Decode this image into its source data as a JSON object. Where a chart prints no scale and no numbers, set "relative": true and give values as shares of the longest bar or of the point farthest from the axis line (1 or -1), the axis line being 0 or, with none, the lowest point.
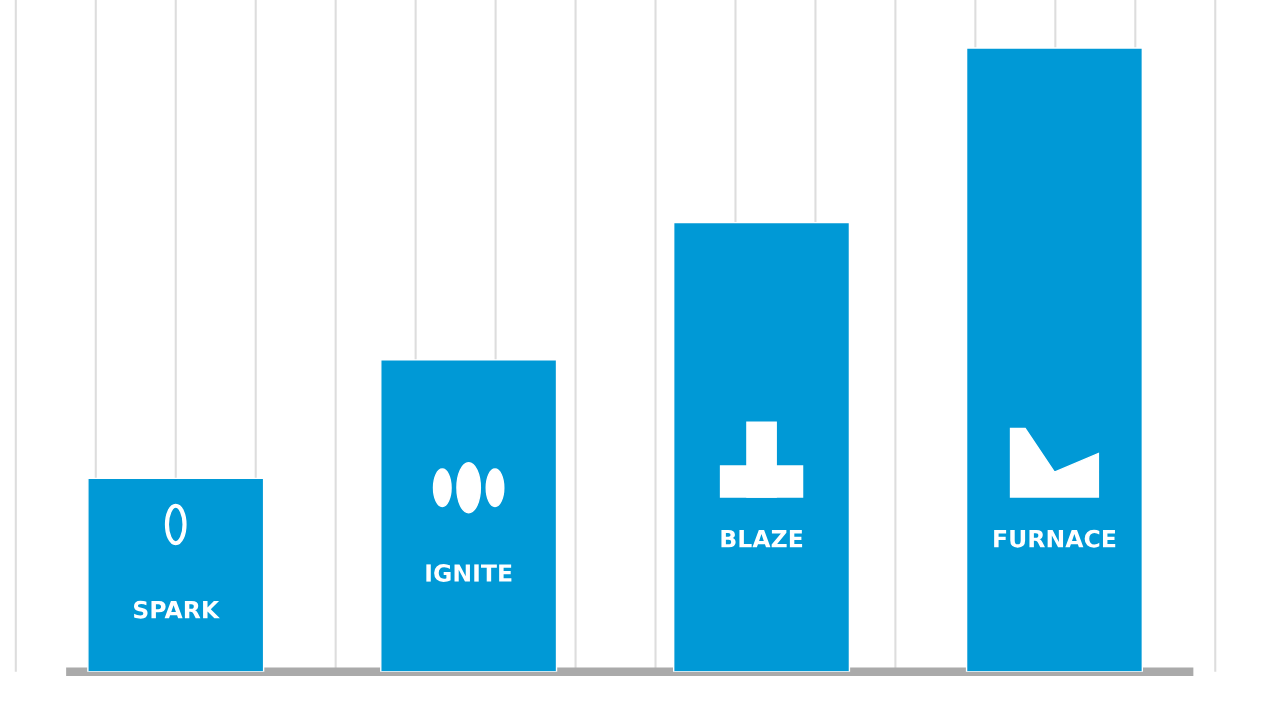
{
  "chart_data": {
    "type": "bar",
    "relative": true,
    "grid": true,
    "categories": [
      "SPARK",
      "IGNITE",
      "BLAZE",
      "FURNACE"
    ],
    "values": [
      0.31,
      0.5,
      0.72,
      1
    ],
    "color": "#0099d6"
  }
}
